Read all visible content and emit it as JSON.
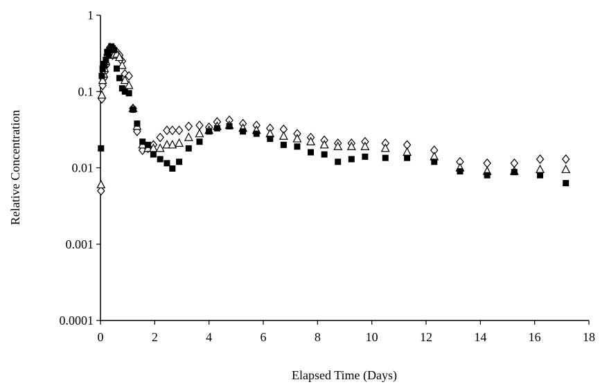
{
  "chart_data": {
    "type": "scatter",
    "title": "",
    "xlabel": "Elapsed Time (Days)",
    "ylabel": "Relative Concentration",
    "xlim": [
      0,
      18
    ],
    "ylim": [
      0.0001,
      1
    ],
    "y_scale": "log",
    "x_ticks": [
      "0",
      "2",
      "4",
      "6",
      "8",
      "10",
      "12",
      "14",
      "16",
      "18"
    ],
    "y_ticks": [
      "1",
      "0.1",
      "0.01",
      "0.001",
      "0.0001"
    ],
    "grid": false,
    "legend": "none",
    "series": [
      {
        "marker": "open-diamond",
        "color": "#000000",
        "x": [
          0.02,
          0.05,
          0.08,
          0.12,
          0.15,
          0.2,
          0.25,
          0.3,
          0.35,
          0.4,
          0.45,
          0.5,
          0.6,
          0.7,
          0.8,
          0.9,
          1.05,
          1.2,
          1.35,
          1.55,
          1.75,
          1.95,
          2.2,
          2.45,
          2.65,
          2.9,
          3.25,
          3.65,
          4.0,
          4.3,
          4.75,
          5.25,
          5.75,
          6.25,
          6.75,
          7.25,
          7.75,
          8.25,
          8.75,
          9.25,
          9.75,
          10.5,
          11.3,
          12.3,
          13.25,
          14.25,
          15.25,
          16.2,
          17.15
        ],
        "y": [
          0.005,
          0.08,
          0.12,
          0.15,
          0.18,
          0.22,
          0.3,
          0.35,
          0.38,
          0.36,
          0.3,
          0.32,
          0.33,
          0.3,
          0.25,
          0.17,
          0.16,
          0.06,
          0.03,
          0.017,
          0.018,
          0.02,
          0.025,
          0.031,
          0.031,
          0.031,
          0.035,
          0.036,
          0.034,
          0.04,
          0.042,
          0.038,
          0.036,
          0.033,
          0.032,
          0.028,
          0.025,
          0.023,
          0.021,
          0.021,
          0.022,
          0.021,
          0.02,
          0.017,
          0.012,
          0.0115,
          0.0115,
          0.013,
          0.013
        ]
      },
      {
        "marker": "open-triangle",
        "color": "#000000",
        "x": [
          0.02,
          0.05,
          0.08,
          0.12,
          0.15,
          0.2,
          0.25,
          0.3,
          0.35,
          0.4,
          0.45,
          0.5,
          0.6,
          0.7,
          0.8,
          0.9,
          1.05,
          1.2,
          1.35,
          1.55,
          1.75,
          1.95,
          2.2,
          2.45,
          2.65,
          2.9,
          3.25,
          3.65,
          4.0,
          4.3,
          4.75,
          5.25,
          5.75,
          6.25,
          6.75,
          7.25,
          7.75,
          8.25,
          8.75,
          9.25,
          9.75,
          10.5,
          11.3,
          12.3,
          13.25,
          14.25,
          15.25,
          16.2,
          17.15
        ],
        "y": [
          0.006,
          0.09,
          0.14,
          0.17,
          0.2,
          0.25,
          0.3,
          0.34,
          0.37,
          0.35,
          0.32,
          0.3,
          0.31,
          0.28,
          0.22,
          0.14,
          0.12,
          0.06,
          0.035,
          0.02,
          0.018,
          0.018,
          0.018,
          0.02,
          0.02,
          0.021,
          0.025,
          0.028,
          0.031,
          0.035,
          0.036,
          0.033,
          0.031,
          0.028,
          0.026,
          0.024,
          0.022,
          0.02,
          0.019,
          0.019,
          0.019,
          0.018,
          0.016,
          0.014,
          0.01,
          0.009,
          0.009,
          0.0095,
          0.0095
        ]
      },
      {
        "marker": "filled-square",
        "color": "#000000",
        "x": [
          0.02,
          0.05,
          0.08,
          0.12,
          0.15,
          0.2,
          0.25,
          0.3,
          0.35,
          0.4,
          0.45,
          0.5,
          0.6,
          0.7,
          0.8,
          0.9,
          1.05,
          1.2,
          1.35,
          1.55,
          1.75,
          1.95,
          2.2,
          2.45,
          2.65,
          2.9,
          3.25,
          3.65,
          4.0,
          4.3,
          4.75,
          5.25,
          5.75,
          6.25,
          6.75,
          7.25,
          7.75,
          8.25,
          8.75,
          9.25,
          9.75,
          10.5,
          11.3,
          12.3,
          13.25,
          14.25,
          15.25,
          16.2,
          17.15
        ],
        "y": [
          0.018,
          0.16,
          0.2,
          0.23,
          0.22,
          0.26,
          0.33,
          0.3,
          0.35,
          0.39,
          0.37,
          0.35,
          0.2,
          0.15,
          0.11,
          0.1,
          0.095,
          0.058,
          0.038,
          0.022,
          0.02,
          0.015,
          0.013,
          0.0115,
          0.0098,
          0.012,
          0.018,
          0.022,
          0.03,
          0.033,
          0.035,
          0.03,
          0.028,
          0.024,
          0.02,
          0.019,
          0.016,
          0.015,
          0.012,
          0.013,
          0.014,
          0.0135,
          0.0135,
          0.012,
          0.009,
          0.008,
          0.0088,
          0.008,
          0.0063
        ]
      }
    ]
  }
}
